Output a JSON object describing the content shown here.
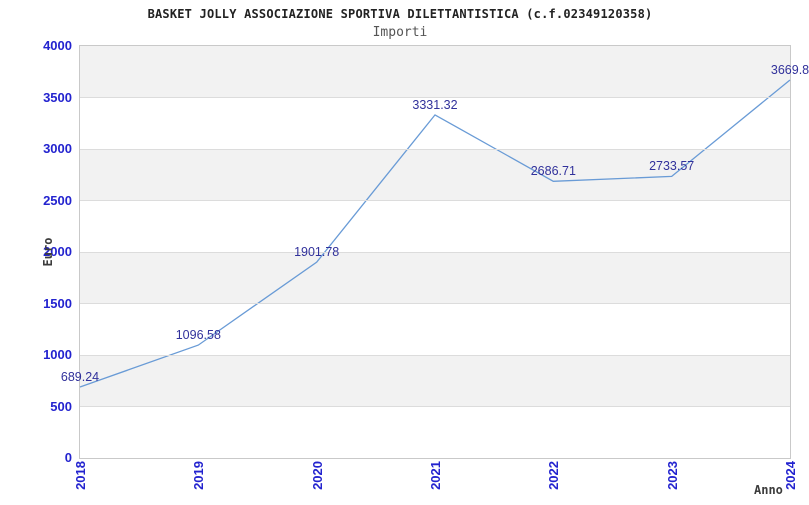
{
  "header": {
    "title": "BASKET JOLLY ASSOCIAZIONE SPORTIVA DILETTANTISTICA (c.f.02349120358)",
    "subtitle": "Importi"
  },
  "axes": {
    "ylabel": "Euro",
    "xlabel": "Anno"
  },
  "chart_data": {
    "type": "line",
    "title": "BASKET JOLLY ASSOCIAZIONE SPORTIVA DILETTANTISTICA (c.f.02349120358)",
    "subtitle": "Importi",
    "xlabel": "Anno",
    "ylabel": "Euro",
    "categories": [
      "2018",
      "2019",
      "2020",
      "2021",
      "2022",
      "2023",
      "2024"
    ],
    "series": [
      {
        "name": "Importi",
        "values": [
          689.24,
          1096.58,
          1901.78,
          3331.32,
          2686.71,
          2733.57,
          3669.8
        ]
      }
    ],
    "point_labels": [
      "689.24",
      "1096.58",
      "1901.78",
      "3331.32",
      "2686.71",
      "2733.57",
      "3669.8"
    ],
    "ylim": [
      0,
      4000
    ],
    "yticks": [
      0,
      500,
      1000,
      1500,
      2000,
      2500,
      3000,
      3500,
      4000
    ],
    "grid": "horizontal gridlines every 500 with alternating gray/white bands",
    "legend_position": "none"
  },
  "colors": {
    "line": "#699bd6",
    "tick_label": "#2323cf",
    "point_label": "#31319b",
    "stripe": "#f2f2f2",
    "plot_border": "#c9c9c9",
    "gridline": "#dcdcdc",
    "title": "#222222",
    "subtitle": "#555555",
    "axis_title": "#3c3c3c",
    "background": "#ffffff"
  }
}
